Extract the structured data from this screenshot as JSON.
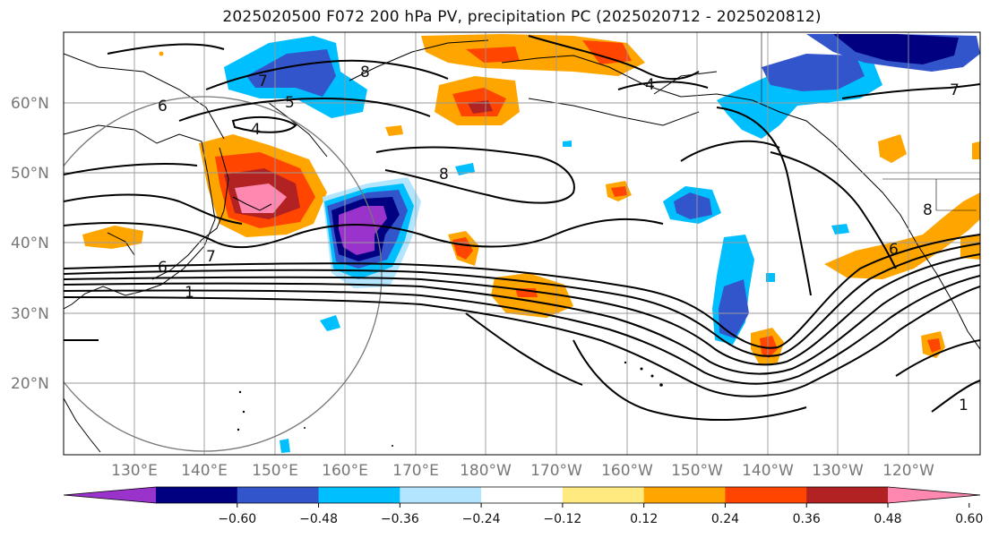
{
  "title": "2025020500 F072 200 hPa PV, precipitation PC (2025020712 - 2025020812)",
  "lat_labels": [
    "60°N",
    "50°N",
    "40°N",
    "30°N",
    "20°N"
  ],
  "lon_labels": [
    "130°E",
    "140°E",
    "150°E",
    "160°E",
    "170°E",
    "180°W",
    "170°W",
    "160°W",
    "150°W",
    "140°W",
    "130°W",
    "120°W"
  ],
  "colorbar": {
    "ticks": [
      "−0.60",
      "−0.48",
      "−0.36",
      "−0.24",
      "−0.12",
      "0.12",
      "0.24",
      "0.36",
      "0.48",
      "0.60"
    ],
    "colors": [
      "#9933cc",
      "#000080",
      "#3355cc",
      "#00bfff",
      "#b3e5ff",
      "#ffffff",
      "#ffea80",
      "#ffa500",
      "#ff4500",
      "#b22222",
      "#ff88b0"
    ]
  },
  "contour_labels": [
    "6",
    "7",
    "8",
    "5",
    "4",
    "8",
    "6",
    "7",
    "1",
    "4",
    "8",
    "6",
    "1",
    "7"
  ]
}
